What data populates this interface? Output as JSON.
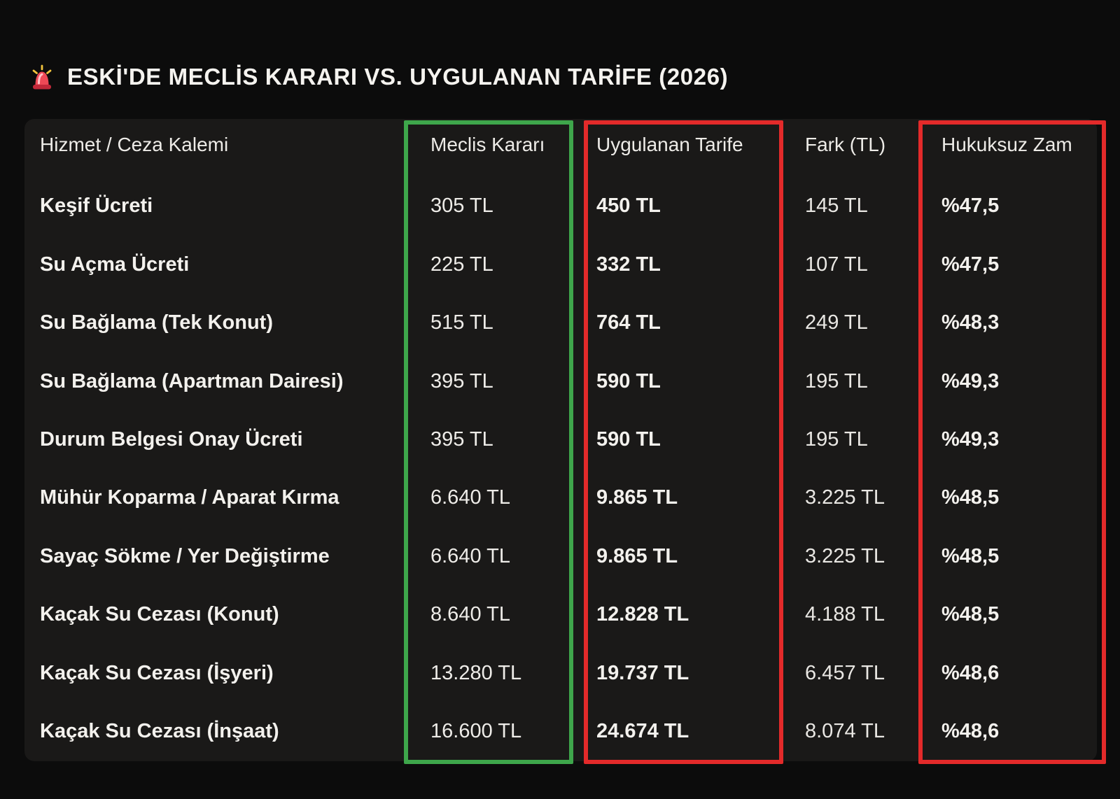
{
  "title": {
    "icon": "siren-light-emoji",
    "text": "ESKİ'DE MECLİS KARARI VS. UYGULANAN TARİFE (2026)"
  },
  "chart_data": {
    "type": "table",
    "title": "ESKİ'DE MECLİS KARARI VS. UYGULANAN TARİFE (2026)",
    "columns": [
      "Hizmet / Ceza Kalemi",
      "Meclis Kararı",
      "Uygulanan Tarife",
      "Fark (TL)",
      "Hukuksuz Zam"
    ],
    "rows": [
      [
        "Keşif Ücreti",
        "305 TL",
        "450 TL",
        "145 TL",
        "%47,5"
      ],
      [
        "Su Açma Ücreti",
        "225 TL",
        "332 TL",
        "107 TL",
        "%47,5"
      ],
      [
        "Su Bağlama (Tek Konut)",
        "515 TL",
        "764 TL",
        "249 TL",
        "%48,3"
      ],
      [
        "Su Bağlama (Apartman Dairesi)",
        "395 TL",
        "590 TL",
        "195 TL",
        "%49,3"
      ],
      [
        "Durum Belgesi Onay Ücreti",
        "395 TL",
        "590 TL",
        "195 TL",
        "%49,3"
      ],
      [
        "Mühür Koparma / Aparat Kırma",
        "6.640 TL",
        "9.865 TL",
        "3.225 TL",
        "%48,5"
      ],
      [
        "Sayaç Sökme / Yer Değiştirme",
        "6.640 TL",
        "9.865 TL",
        "3.225 TL",
        "%48,5"
      ],
      [
        "Kaçak Su Cezası (Konut)",
        "8.640 TL",
        "12.828 TL",
        "4.188 TL",
        "%48,5"
      ],
      [
        "Kaçak Su Cezası (İşyeri)",
        "13.280 TL",
        "19.737 TL",
        "6.457 TL",
        "%48,6"
      ],
      [
        "Kaçak Su Cezası (İnşaat)",
        "16.600 TL",
        "24.674 TL",
        "8.074 TL",
        "%48,6"
      ]
    ],
    "highlights": {
      "green_box_column": "Meclis Kararı",
      "red_box_columns": [
        "Uygulanan Tarife",
        "Hukuksuz Zam"
      ]
    },
    "legend_position": "none",
    "grid": false
  },
  "column_keys": [
    "hizmet-ceza-kalemi",
    "meclis-karari",
    "uygulanan-tarife",
    "fark-tl",
    "hukuksuz-zam"
  ],
  "colors": {
    "highlight_green": "#3ea64b",
    "highlight_red": "#e32a2a",
    "card_background": "#1a1918",
    "page_background": "#0c0c0c",
    "text_primary": "#f2f0ec"
  }
}
